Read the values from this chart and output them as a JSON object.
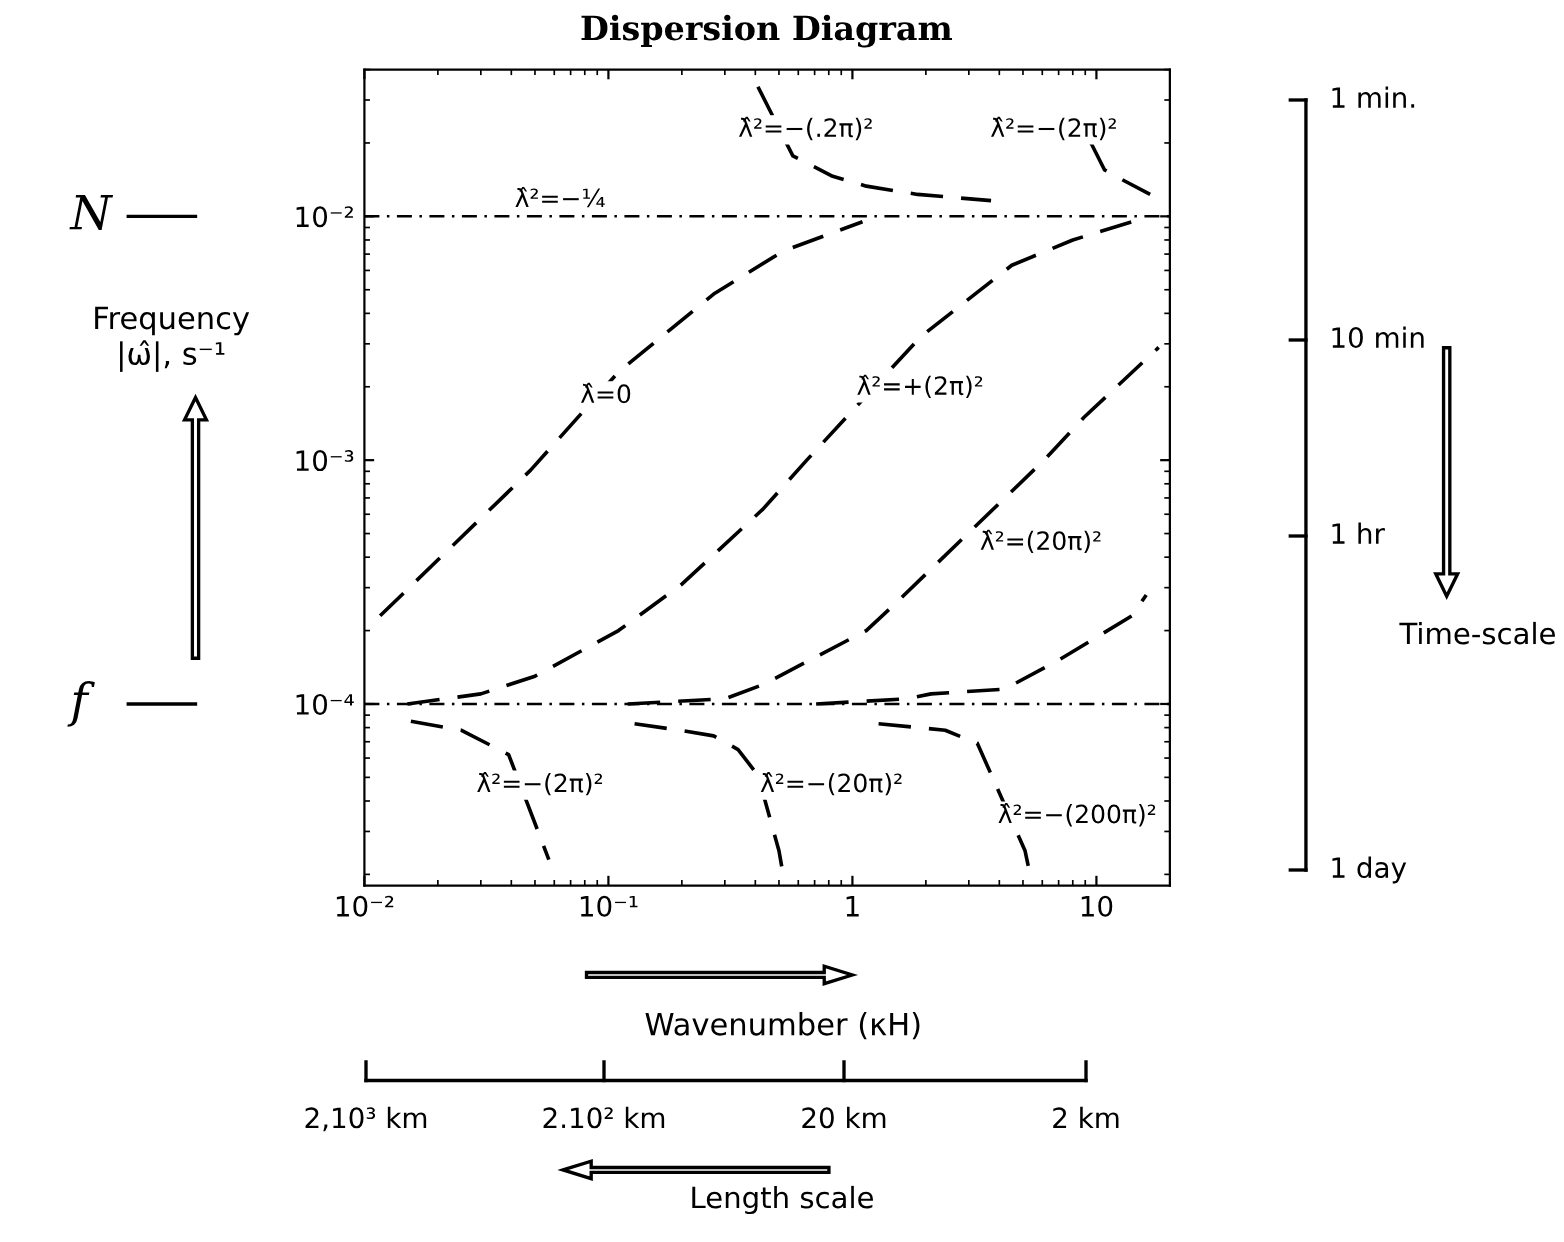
{
  "chart_data": {
    "type": "line",
    "title": "Dispersion Diagram",
    "xlabel": "Wavenumber (κH)",
    "ylabel": "Frequency\n|ω̂|, s⁻¹",
    "log": "xy",
    "grid": false,
    "legend": false,
    "line_style": "dashed",
    "xlim": [
      0.01,
      20
    ],
    "xticks": [
      {
        "value": 0.01,
        "label": "10⁻²"
      },
      {
        "value": 0.1,
        "label": "10⁻¹"
      },
      1,
      10
    ],
    "ylim": [
      1.8e-05,
      0.04
    ],
    "yticks": [
      {
        "value": 0.0001,
        "label": "10⁻⁴"
      },
      {
        "value": 0.001,
        "label": "10⁻³"
      },
      {
        "value": 0.01,
        "label": "10⁻²"
      }
    ],
    "ref_lines": [
      {
        "axis": "y",
        "value": 0.01,
        "line_style": "dashed",
        "color": "#000000"
      },
      {
        "axis": "y",
        "value": 0.0001,
        "line_style": "dashed",
        "color": "#000000"
      }
    ],
    "series": [
      {
        "color": "#000000",
        "x": [
          0.0116,
          0.048,
          0.11,
          0.27,
          0.52,
          1.1
        ],
        "values": [
          0.00023,
          0.00091,
          0.0023,
          0.0048,
          0.0072,
          0.0095
        ]
      },
      {
        "color": "#000000",
        "x": [
          0.015,
          0.03,
          0.05,
          0.11,
          0.2,
          0.43,
          0.65,
          1.9,
          4.5,
          8,
          14
        ],
        "values": [
          0.0001,
          0.00011,
          0.00013,
          0.0002,
          0.00031,
          0.00063,
          0.001,
          0.0032,
          0.0063,
          0.008,
          0.0095
        ]
      },
      {
        "color": "#000000",
        "x": [
          0.12,
          0.3,
          0.43,
          1.14,
          1.45,
          6.1,
          8.9,
          18
        ],
        "values": [
          0.0001,
          0.000105,
          0.00012,
          0.0002,
          0.00025,
          0.001,
          0.0015,
          0.0029
        ]
      },
      {
        "color": "#000000",
        "x": [
          0.71,
          1.66,
          2.1,
          4.2,
          6.9,
          14,
          16
        ],
        "values": [
          0.0001,
          0.000105,
          0.00011,
          0.000115,
          0.00015,
          0.00023,
          0.00028
        ]
      },
      {
        "color": "#000000",
        "x": [
          0.0155,
          0.025,
          0.039,
          0.057
        ],
        "values": [
          8.5e-05,
          7.8e-05,
          6.2e-05,
          2.3e-05
        ]
      },
      {
        "color": "#000000",
        "x": [
          0.128,
          0.196,
          0.27,
          0.34,
          0.41,
          0.5,
          0.52
        ],
        "values": [
          8.3e-05,
          7.8e-05,
          7.4e-05,
          6.5e-05,
          5.1e-05,
          2.5e-05,
          2e-05
        ]
      },
      {
        "color": "#000000",
        "x": [
          1.28,
          2.4,
          3.25,
          5.1,
          5.4
        ],
        "values": [
          8.3e-05,
          7.8e-05,
          6.9e-05,
          2.5e-05,
          1.9e-05
        ]
      },
      {
        "color": "#000000",
        "x": [
          0.41,
          0.57,
          0.83,
          1.14,
          1.85,
          3.7
        ],
        "values": [
          0.034,
          0.0177,
          0.0146,
          0.0133,
          0.0123,
          0.0116
        ]
      },
      {
        "color": "#000000",
        "x": [
          9.5,
          10.8,
          13,
          16.6
        ],
        "values": [
          0.02,
          0.0155,
          0.014,
          0.0123
        ]
      }
    ],
    "annotations": [
      "λ̂=0",
      "λ̂²=+(2π)²",
      "λ̂²=(20π)²",
      "λ̂²=−(.2π)²",
      "λ̂²=−(2π)²",
      "λ̂²=−¼",
      "λ̂²=−(2π)²",
      "λ̂²=−(20π)²",
      "λ̂²=−(200π)²",
      "1 min.",
      "10 min",
      "1 hr",
      "1 day",
      "2,10³ km",
      "2.10² km",
      "20 km",
      "2 km",
      "Time-scale",
      "Length scale",
      "N",
      "f"
    ]
  }
}
